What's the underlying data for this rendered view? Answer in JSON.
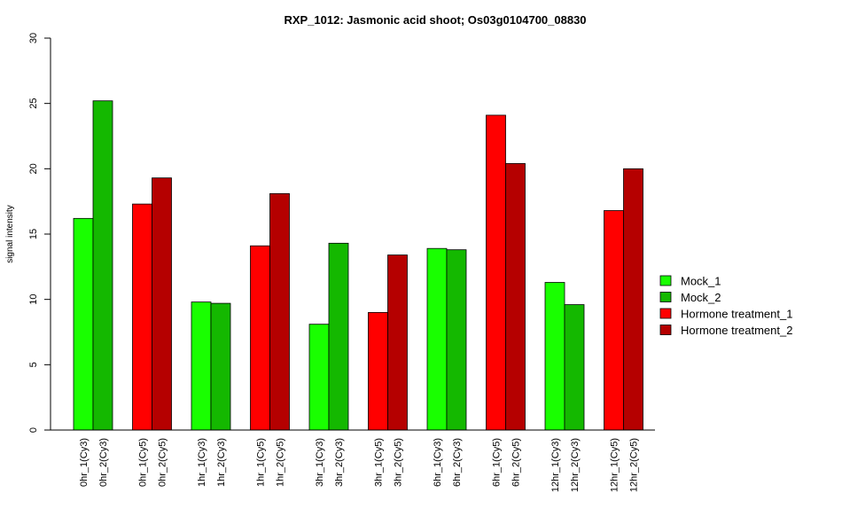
{
  "chart_data": {
    "type": "bar",
    "title": "RXP_1012: Jasmonic acid shoot; Os03g0104700_08830",
    "xlabel": "",
    "ylabel": "signal intensity",
    "ylim": [
      0,
      30
    ],
    "yticks": [
      0,
      5,
      10,
      15,
      20,
      25,
      30
    ],
    "grid": false,
    "legend_position": "right",
    "legend": [
      {
        "name": "Mock_1",
        "color": "#19FF00"
      },
      {
        "name": "Mock_2",
        "color": "#14B800"
      },
      {
        "name": "Hormone treatment_1",
        "color": "#FF0000"
      },
      {
        "name": "Hormone treatment_2",
        "color": "#B50000"
      }
    ],
    "bars": [
      {
        "label": "0hr_1(Cy3)",
        "value": 16.2,
        "color": "#19FF00"
      },
      {
        "label": "0hr_2(Cy3)",
        "value": 25.2,
        "color": "#14B800"
      },
      {
        "label": "0hr_1(Cy5)",
        "value": 17.3,
        "color": "#FF0000"
      },
      {
        "label": "0hr_2(Cy5)",
        "value": 19.3,
        "color": "#B50000"
      },
      {
        "label": "1hr_1(Cy3)",
        "value": 9.8,
        "color": "#19FF00"
      },
      {
        "label": "1hr_2(Cy3)",
        "value": 9.7,
        "color": "#14B800"
      },
      {
        "label": "1hr_1(Cy5)",
        "value": 14.1,
        "color": "#FF0000"
      },
      {
        "label": "1hr_2(Cy5)",
        "value": 18.1,
        "color": "#B50000"
      },
      {
        "label": "3hr_1(Cy3)",
        "value": 8.1,
        "color": "#19FF00"
      },
      {
        "label": "3hr_2(Cy3)",
        "value": 14.3,
        "color": "#14B800"
      },
      {
        "label": "3hr_1(Cy5)",
        "value": 9.0,
        "color": "#FF0000"
      },
      {
        "label": "3hr_2(Cy5)",
        "value": 13.4,
        "color": "#B50000"
      },
      {
        "label": "6hr_1(Cy3)",
        "value": 13.9,
        "color": "#19FF00"
      },
      {
        "label": "6hr_2(Cy3)",
        "value": 13.8,
        "color": "#14B800"
      },
      {
        "label": "6hr_1(Cy5)",
        "value": 24.1,
        "color": "#FF0000"
      },
      {
        "label": "6hr_2(Cy5)",
        "value": 20.4,
        "color": "#B50000"
      },
      {
        "label": "12hr_1(Cy3)",
        "value": 11.3,
        "color": "#19FF00"
      },
      {
        "label": "12hr_2(Cy3)",
        "value": 9.6,
        "color": "#14B800"
      },
      {
        "label": "12hr_1(Cy5)",
        "value": 16.8,
        "color": "#FF0000"
      },
      {
        "label": "12hr_2(Cy5)",
        "value": 20.0,
        "color": "#B50000"
      }
    ]
  }
}
